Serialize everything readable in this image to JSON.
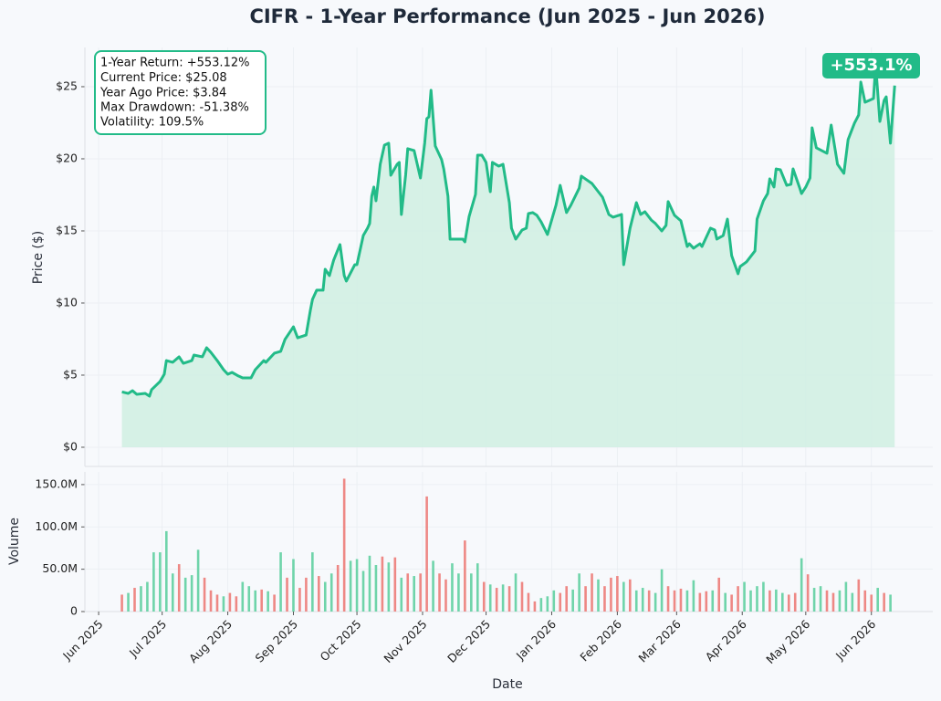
{
  "chart_data": [
    {
      "type": "area",
      "title": "CIFR - 1-Year Performance (Jun 2025 - Jun 2026)",
      "y_label": "Price ($)",
      "annotations": [
        "1-Year Return: +553.12%",
        "Current Price: $25.08",
        "Year Ago Price: $3.84",
        "Max Drawdown: -51.38%",
        "Volatility: 109.5%"
      ],
      "badge": "+553.1%",
      "color": "#22bb88",
      "fill_color": "#d2efe3",
      "grid": true,
      "xlim": [
        -6.5,
        394
      ],
      "ylim": [
        -1.33,
        27.72
      ],
      "yticks": [
        {
          "value": 0,
          "label": "$0"
        },
        {
          "value": 5,
          "label": "$5"
        },
        {
          "value": 10,
          "label": "$10"
        },
        {
          "value": 15,
          "label": "$15"
        },
        {
          "value": 20,
          "label": "$20"
        },
        {
          "value": 25,
          "label": "$25"
        }
      ],
      "x": [
        11,
        14,
        16,
        18,
        22,
        24,
        25,
        29,
        31,
        32,
        35,
        38,
        40,
        44,
        45,
        49,
        51,
        53,
        56,
        59,
        61,
        63,
        66,
        68,
        72,
        74,
        78,
        79,
        83,
        86,
        88,
        92,
        94,
        98,
        100,
        101,
        103,
        106,
        107,
        109,
        111,
        114,
        116,
        117,
        121,
        122,
        125,
        127,
        128,
        129,
        130,
        131,
        133,
        135,
        137,
        138,
        141,
        142,
        143,
        145,
        146,
        149,
        152,
        154,
        155,
        156,
        157,
        159,
        162,
        163,
        165,
        166,
        168,
        170,
        172,
        173,
        175,
        178,
        179,
        181,
        183,
        185,
        186,
        189,
        191,
        194,
        195,
        197,
        200,
        202,
        203,
        205,
        207,
        209,
        212,
        216,
        218,
        221,
        223,
        227,
        228,
        233,
        236,
        238,
        241,
        243,
        247,
        248,
        251,
        254,
        256,
        258,
        261,
        263,
        266,
        268,
        269,
        272,
        275,
        278,
        279,
        281,
        284,
        285,
        289,
        291,
        292,
        295,
        297,
        299,
        302,
        303,
        306,
        310,
        311,
        314,
        316,
        317,
        319,
        320,
        322,
        325,
        327,
        328,
        331,
        332,
        334,
        336,
        337,
        339,
        344,
        346,
        349,
        352,
        354,
        357,
        359,
        360,
        362,
        364,
        366,
        367,
        369,
        371,
        372,
        374,
        376
      ],
      "values": [
        3.84,
        3.73,
        3.92,
        3.67,
        3.73,
        3.54,
        3.99,
        4.56,
        5.06,
        6.01,
        5.89,
        6.27,
        5.82,
        6.01,
        6.39,
        6.27,
        6.9,
        6.58,
        6.01,
        5.38,
        5.06,
        5.19,
        4.94,
        4.81,
        4.81,
        5.38,
        6.01,
        5.89,
        6.52,
        6.65,
        7.47,
        8.35,
        7.59,
        7.78,
        9.49,
        10.25,
        10.89,
        10.89,
        12.34,
        11.9,
        12.97,
        14.05,
        11.9,
        11.52,
        12.66,
        12.66,
        14.68,
        15.19,
        15.51,
        17.41,
        18.04,
        17.09,
        19.62,
        20.95,
        21.08,
        18.86,
        19.62,
        19.75,
        16.14,
        18.86,
        20.7,
        20.57,
        18.67,
        21.08,
        22.78,
        22.91,
        24.75,
        20.89,
        19.94,
        19.3,
        17.41,
        14.43,
        14.43,
        14.43,
        14.43,
        14.24,
        16.01,
        17.53,
        20.25,
        20.25,
        19.75,
        17.72,
        19.75,
        19.49,
        19.62,
        16.96,
        15.19,
        14.43,
        15.06,
        15.19,
        16.2,
        16.27,
        16.08,
        15.63,
        14.75,
        16.77,
        18.16,
        16.27,
        16.77,
        17.97,
        18.8,
        18.29,
        17.72,
        17.34,
        16.14,
        15.95,
        16.14,
        12.66,
        15.19,
        16.96,
        16.14,
        16.33,
        15.76,
        15.51,
        15.0,
        15.38,
        17.03,
        16.08,
        15.7,
        13.92,
        14.11,
        13.8,
        14.11,
        13.92,
        15.19,
        15.06,
        14.43,
        14.68,
        15.82,
        13.29,
        12.03,
        12.53,
        12.85,
        13.61,
        15.82,
        17.09,
        17.59,
        18.61,
        18.04,
        19.3,
        19.24,
        18.16,
        18.23,
        19.3,
        18.04,
        17.59,
        18.04,
        18.67,
        22.15,
        20.76,
        20.38,
        22.34,
        19.62,
        18.99,
        21.33,
        22.47,
        23.04,
        25.32,
        23.92,
        24.05,
        24.18,
        26.58,
        22.59,
        24.05,
        24.3,
        21.08,
        25.08
      ]
    },
    {
      "type": "bar",
      "y_label": "Volume",
      "x_label": "Date",
      "grid": true,
      "xlim": [
        -6.5,
        394
      ],
      "ylim": [
        0,
        165
      ],
      "yticks": [
        0,
        {
          "value": 50,
          "label": "50.0M"
        },
        {
          "value": 100,
          "label": "100.0M"
        },
        {
          "value": 150,
          "label": "150.0M"
        }
      ],
      "xticks": [
        {
          "value": 0,
          "label": "Jun 2025"
        },
        {
          "value": 30,
          "label": "Jul 2025"
        },
        {
          "value": 61,
          "label": "Aug 2025"
        },
        {
          "value": 92,
          "label": "Sep 2025"
        },
        {
          "value": 122,
          "label": "Oct 2025"
        },
        {
          "value": 153,
          "label": "Nov 2025"
        },
        {
          "value": 183,
          "label": "Dec 2025"
        },
        {
          "value": 214,
          "label": "Jan 2026"
        },
        {
          "value": 245,
          "label": "Feb 2026"
        },
        {
          "value": 273,
          "label": "Mar 2026"
        },
        {
          "value": 304,
          "label": "Apr 2026"
        },
        {
          "value": 334,
          "label": "May 2026"
        },
        {
          "value": 365,
          "label": "Jun 2026"
        }
      ],
      "x": [
        11,
        14,
        17,
        20,
        23,
        26,
        29,
        32,
        35,
        38,
        41,
        44,
        47,
        50,
        53,
        56,
        59,
        62,
        65,
        68,
        71,
        74,
        77,
        80,
        83,
        86,
        89,
        92,
        95,
        98,
        101,
        104,
        107,
        110,
        113,
        116,
        119,
        122,
        125,
        128,
        131,
        134,
        137,
        140,
        143,
        146,
        149,
        152,
        155,
        158,
        161,
        164,
        167,
        170,
        173,
        176,
        179,
        182,
        185,
        188,
        191,
        194,
        197,
        200,
        203,
        206,
        209,
        212,
        215,
        218,
        221,
        224,
        227,
        230,
        233,
        236,
        239,
        242,
        245,
        248,
        251,
        254,
        257,
        260,
        263,
        266,
        269,
        272,
        275,
        278,
        281,
        284,
        287,
        290,
        293,
        296,
        299,
        302,
        305,
        308,
        311,
        314,
        317,
        320,
        323,
        326,
        329,
        332,
        335,
        338,
        341,
        344,
        347,
        350,
        353,
        356,
        359,
        362,
        365,
        368,
        371,
        374
      ],
      "values": [
        20,
        22,
        28,
        30,
        35,
        70,
        70,
        95,
        45,
        56,
        40,
        43,
        73,
        40,
        25,
        20,
        18,
        22,
        18,
        35,
        30,
        25,
        26,
        24,
        20,
        70,
        40,
        62,
        28,
        40,
        70,
        42,
        35,
        45,
        55,
        157,
        60,
        62,
        48,
        66,
        55,
        65,
        58,
        64,
        40,
        45,
        42,
        45,
        136,
        60,
        45,
        38,
        57,
        45,
        84,
        45,
        57,
        35,
        32,
        28,
        32,
        30,
        45,
        35,
        22,
        12,
        16,
        18,
        25,
        22,
        30,
        26,
        45,
        30,
        45,
        38,
        30,
        40,
        42,
        35,
        38,
        25,
        28,
        25,
        22,
        50,
        30,
        25,
        27,
        25,
        37,
        22,
        24,
        25,
        40,
        22,
        20,
        30,
        35,
        25,
        30,
        35,
        25,
        26,
        22,
        20,
        22,
        63,
        44,
        28,
        30,
        25,
        22,
        25,
        35,
        22,
        38,
        25,
        20,
        28,
        22,
        20
      ],
      "colors": [
        "#ee8885",
        "#6fd4aa",
        "#ee8885",
        "#6fd4aa",
        "#6fd4aa",
        "#6fd4aa",
        "#6fd4aa",
        "#6fd4aa",
        "#6fd4aa",
        "#ee8885",
        "#6fd4aa",
        "#6fd4aa",
        "#6fd4aa",
        "#ee8885",
        "#ee8885",
        "#ee8885",
        "#6fd4aa",
        "#ee8885",
        "#ee8885",
        "#6fd4aa",
        "#6fd4aa",
        "#6fd4aa",
        "#ee8885",
        "#6fd4aa",
        "#ee8885",
        "#6fd4aa",
        "#ee8885",
        "#6fd4aa",
        "#ee8885",
        "#ee8885",
        "#6fd4aa",
        "#ee8885",
        "#6fd4aa",
        "#6fd4aa",
        "#ee8885",
        "#ee8885",
        "#6fd4aa",
        "#6fd4aa",
        "#6fd4aa",
        "#6fd4aa",
        "#6fd4aa",
        "#ee8885",
        "#6fd4aa",
        "#ee8885",
        "#6fd4aa",
        "#ee8885",
        "#6fd4aa",
        "#ee8885",
        "#ee8885",
        "#6fd4aa",
        "#ee8885",
        "#ee8885",
        "#6fd4aa",
        "#6fd4aa",
        "#ee8885",
        "#6fd4aa",
        "#6fd4aa",
        "#ee8885",
        "#6fd4aa",
        "#ee8885",
        "#6fd4aa",
        "#ee8885",
        "#6fd4aa",
        "#ee8885",
        "#ee8885",
        "#ee8885",
        "#6fd4aa",
        "#6fd4aa",
        "#6fd4aa",
        "#ee8885",
        "#ee8885",
        "#6fd4aa",
        "#6fd4aa",
        "#ee8885",
        "#ee8885",
        "#6fd4aa",
        "#ee8885",
        "#ee8885",
        "#ee8885",
        "#6fd4aa",
        "#ee8885",
        "#6fd4aa",
        "#6fd4aa",
        "#ee8885",
        "#6fd4aa",
        "#6fd4aa",
        "#ee8885",
        "#ee8885",
        "#ee8885",
        "#6fd4aa",
        "#6fd4aa",
        "#ee8885",
        "#ee8885",
        "#6fd4aa",
        "#ee8885",
        "#6fd4aa",
        "#ee8885",
        "#ee8885",
        "#6fd4aa",
        "#6fd4aa",
        "#6fd4aa",
        "#6fd4aa",
        "#ee8885",
        "#6fd4aa",
        "#6fd4aa",
        "#ee8885",
        "#ee8885",
        "#6fd4aa",
        "#ee8885",
        "#6fd4aa",
        "#6fd4aa",
        "#ee8885",
        "#ee8885",
        "#6fd4aa",
        "#6fd4aa",
        "#6fd4aa",
        "#ee8885",
        "#ee8885",
        "#ee8885",
        "#6fd4aa",
        "#ee8885",
        "#6fd4aa"
      ]
    }
  ]
}
